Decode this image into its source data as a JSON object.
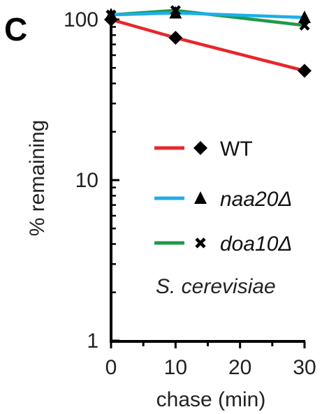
{
  "panel_label": "C",
  "chart_data": {
    "type": "line",
    "x": [
      0,
      10,
      30
    ],
    "xticks": [
      "0",
      "10",
      "20",
      "30"
    ],
    "xlabel": "chase (min)",
    "ylabel": "% remaining",
    "yscale": "log",
    "ylim": [
      1,
      100
    ],
    "yticks": [
      "1",
      "10",
      "100"
    ],
    "series": [
      {
        "name": "WT",
        "color": "#e8262b",
        "marker": "diamond",
        "values": [
          100,
          77,
          48
        ]
      },
      {
        "name": "naa20Δ",
        "color": "#1eaee8",
        "marker": "triangle",
        "values": [
          107,
          110,
          103
        ]
      },
      {
        "name": "doa10Δ",
        "color": "#1f9a48",
        "marker": "cross",
        "values": [
          107,
          114,
          92
        ]
      }
    ],
    "annotation": "S. cerevisiae",
    "legend_position": "center-right",
    "grid": false
  }
}
